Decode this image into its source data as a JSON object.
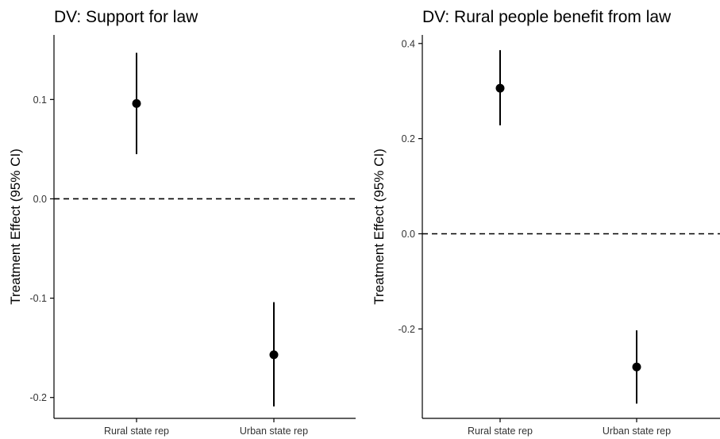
{
  "chart_data": [
    {
      "type": "scatter",
      "title": "DV: Support for law",
      "xlabel": "",
      "ylabel": "Treatment Effect (95% CI)",
      "categories": [
        "Rural state rep",
        "Urban state rep"
      ],
      "estimates": [
        0.096,
        -0.157
      ],
      "ci_lower": [
        0.045,
        -0.209
      ],
      "ci_upper": [
        0.147,
        -0.104
      ],
      "yticks": [
        0.1,
        0.0,
        -0.1,
        -0.2
      ],
      "ytick_labels": [
        "0.1",
        "0.0",
        "-0.1",
        "-0.2"
      ],
      "ylim": [
        -0.221,
        0.165
      ],
      "reference_line": 0.0,
      "grid": false,
      "legend": false
    },
    {
      "type": "scatter",
      "title": "DV: Rural people benefit from law",
      "xlabel": "",
      "ylabel": "Treatment Effect (95% CI)",
      "categories": [
        "Rural state rep",
        "Urban state rep"
      ],
      "estimates": [
        0.306,
        -0.28
      ],
      "ci_lower": [
        0.228,
        -0.357
      ],
      "ci_upper": [
        0.386,
        -0.203
      ],
      "yticks": [
        0.4,
        0.2,
        0.0,
        -0.2
      ],
      "ytick_labels": [
        "0.4",
        "0.2",
        "0.0",
        "-0.2"
      ],
      "ylim": [
        -0.388,
        0.418
      ],
      "reference_line": 0.0,
      "grid": false,
      "legend": false
    }
  ]
}
